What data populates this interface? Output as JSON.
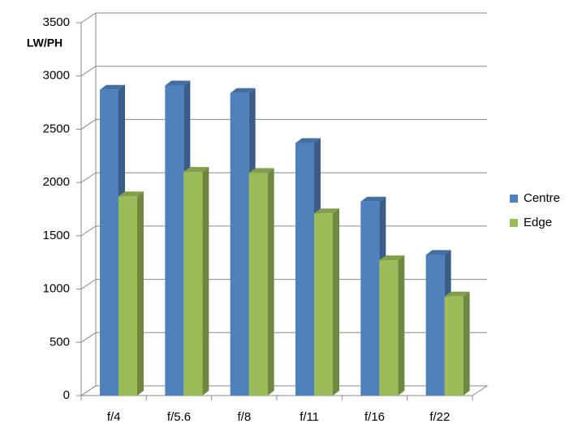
{
  "chart_data": {
    "type": "bar",
    "ylabel": "LW/PH",
    "categories": [
      "f/4",
      "f/5.6",
      "f/8",
      "f/11",
      "f/16",
      "f/22"
    ],
    "series": [
      {
        "name": "Centre",
        "color": "#4f81bd",
        "values": [
          2870,
          2910,
          2840,
          2370,
          1820,
          1320
        ]
      },
      {
        "name": "Edge",
        "color": "#9bbb59",
        "values": [
          1870,
          2100,
          2090,
          1710,
          1270,
          930
        ]
      }
    ],
    "ylim": [
      0,
      3500
    ],
    "yticks": [
      0,
      500,
      1000,
      1500,
      2000,
      2500,
      3000,
      3500
    ],
    "grid": true,
    "legend": "right"
  }
}
